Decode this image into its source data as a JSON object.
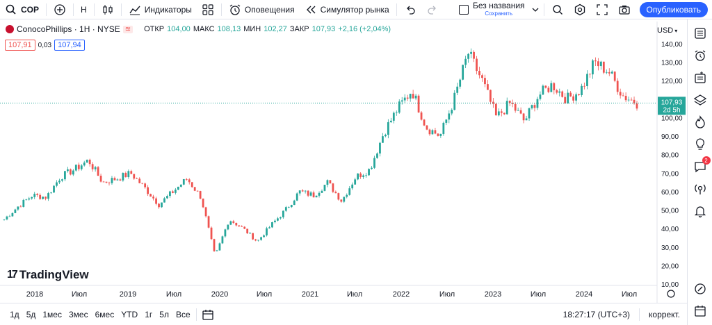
{
  "topbar": {
    "symbol": "COP",
    "interval": "H",
    "indicators_label": "Индикаторы",
    "alerts_label": "Оповещения",
    "simulator_label": "Симулятор рынка",
    "layout_title": "Без названия",
    "layout_status": "Сохранить",
    "publish_label": "Опубликовать"
  },
  "legend": {
    "name": "ConocoPhillips · 1H · NYSE",
    "open_label": "ОТКР",
    "open": "104,00",
    "high_label": "МАКС",
    "high": "108,13",
    "low_label": "МИН",
    "low": "102,27",
    "close_label": "ЗАКР",
    "close": "107,93",
    "change": "+2,16 (+2,04%)",
    "bid": "107,91",
    "spread": "0,03",
    "ask": "107,94",
    "currency": "USD"
  },
  "chart_data": {
    "type": "candlestick",
    "y_ticks": [
      "140,00",
      "130,00",
      "120,00",
      "110,00",
      "100,00",
      "90,00",
      "80,00",
      "70,00",
      "60,00",
      "50,00",
      "40,00",
      "30,00",
      "20,00",
      "10,00"
    ],
    "x_ticks": [
      "2018",
      "Июл",
      "2019",
      "Июл",
      "2020",
      "Июл",
      "2021",
      "Июл",
      "2022",
      "Июл",
      "2023",
      "Июл",
      "2024",
      "Июл"
    ],
    "ylim": [
      5,
      145
    ],
    "last_price": "107,93",
    "countdown": "2d 5h",
    "up_color": "#26a69a",
    "down_color": "#ef5350",
    "x": [
      "2017-10",
      "2017-12",
      "2018-02",
      "2018-04",
      "2018-06",
      "2018-08",
      "2018-10",
      "2018-12",
      "2019-02",
      "2019-04",
      "2019-06",
      "2019-08",
      "2019-10",
      "2019-12",
      "2020-02",
      "2020-03",
      "2020-04",
      "2020-06",
      "2020-08",
      "2020-10",
      "2020-12",
      "2021-02",
      "2021-04",
      "2021-06",
      "2021-08",
      "2021-10",
      "2021-12",
      "2022-02",
      "2022-03",
      "2022-04",
      "2022-06",
      "2022-07",
      "2022-09",
      "2022-11",
      "2022-12",
      "2023-02",
      "2023-04",
      "2023-06",
      "2023-08",
      "2023-10",
      "2023-12",
      "2024-02",
      "2024-04",
      "2024-05",
      "2024-06",
      "2024-08"
    ],
    "values": [
      45,
      52,
      58,
      57,
      68,
      72,
      77,
      65,
      67,
      70,
      62,
      53,
      60,
      67,
      57,
      25,
      45,
      40,
      33,
      42,
      50,
      60,
      58,
      65,
      55,
      68,
      72,
      92,
      105,
      115,
      95,
      90,
      110,
      135,
      120,
      100,
      108,
      98,
      112,
      118,
      110,
      115,
      130,
      125,
      112,
      108
    ]
  },
  "watermark": "TradingView",
  "bottombar": {
    "ranges": [
      "1д",
      "5д",
      "1мес",
      "3мес",
      "6мес",
      "YTD",
      "1г",
      "5л",
      "Все"
    ],
    "time": "18:27:17 (UTC+3)",
    "adjust": "коррект."
  },
  "sidebar": {
    "notifications": "2"
  }
}
